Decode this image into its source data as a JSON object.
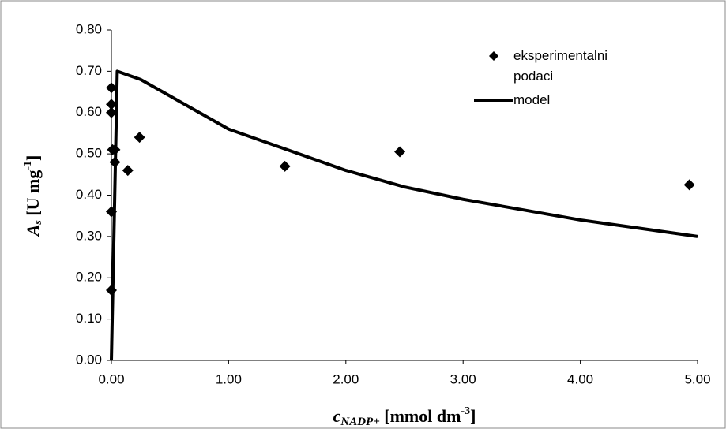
{
  "chart_data": {
    "type": "scatter",
    "y_label": [
      "A",
      "s",
      " [U mg",
      "-1",
      "]"
    ],
    "x_label": [
      "c",
      "NADP+",
      " [mmol dm",
      "-3",
      "]"
    ],
    "xlim": [
      0,
      5
    ],
    "ylim": [
      0,
      0.8
    ],
    "xticks": [
      {
        "value": 0,
        "label": "0.00"
      },
      {
        "value": 1,
        "label": "1.00"
      },
      {
        "value": 2,
        "label": "2.00"
      },
      {
        "value": 3,
        "label": "3.00"
      },
      {
        "value": 4,
        "label": "4.00"
      },
      {
        "value": 5,
        "label": "5.00"
      }
    ],
    "yticks": [
      {
        "value": 0,
        "label": "0.00"
      },
      {
        "value": 0.1,
        "label": "0.10"
      },
      {
        "value": 0.2,
        "label": "0.20"
      },
      {
        "value": 0.3,
        "label": "0.30"
      },
      {
        "value": 0.4,
        "label": "0.40"
      },
      {
        "value": 0.5,
        "label": "0.50"
      },
      {
        "value": 0.6,
        "label": "0.60"
      },
      {
        "value": 0.7,
        "label": "0.70"
      },
      {
        "value": 0.8,
        "label": "0.80"
      }
    ],
    "series": [
      {
        "name": "eksperimentalni podaci",
        "type": "scatter",
        "color": "#000000",
        "x": [
          0,
          0,
          0,
          0.01,
          0.03,
          0.03,
          0,
          0,
          0.14,
          0.24,
          1.48,
          2.46,
          4.93
        ],
        "values": [
          0.66,
          0.62,
          0.6,
          0.51,
          0.51,
          0.48,
          0.36,
          0.17,
          0.46,
          0.54,
          0.47,
          0.505,
          0.425
        ]
      },
      {
        "name": "model",
        "type": "line",
        "color": "#000000",
        "x": [
          0,
          0.05,
          0.25,
          0.5,
          1,
          1.5,
          2,
          2.5,
          3,
          3.5,
          4,
          4.5,
          5
        ],
        "values": [
          0,
          0.7,
          0.68,
          0.64,
          0.56,
          0.51,
          0.46,
          0.42,
          0.39,
          0.365,
          0.34,
          0.32,
          0.3
        ]
      }
    ]
  }
}
